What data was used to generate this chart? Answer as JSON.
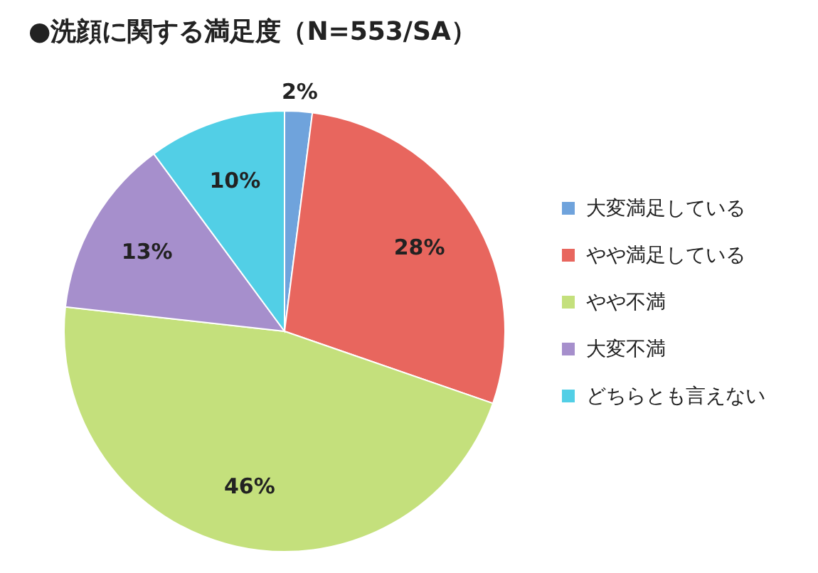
{
  "chart_data": {
    "type": "pie",
    "title": "●洗顔に関する満足度（N=553/SA）",
    "categories": [
      "大変満足している",
      "やや満足している",
      "やや不満",
      "大変不満",
      "どちらとも言えない"
    ],
    "values": [
      2,
      28,
      46,
      13,
      10
    ],
    "colors": [
      "#6fa3dc",
      "#e8665e",
      "#c4e07c",
      "#a68fcc",
      "#52cfe6"
    ],
    "value_labels": [
      "2%",
      "28%",
      "46%",
      "13%",
      "10%"
    ],
    "legend": "right"
  }
}
